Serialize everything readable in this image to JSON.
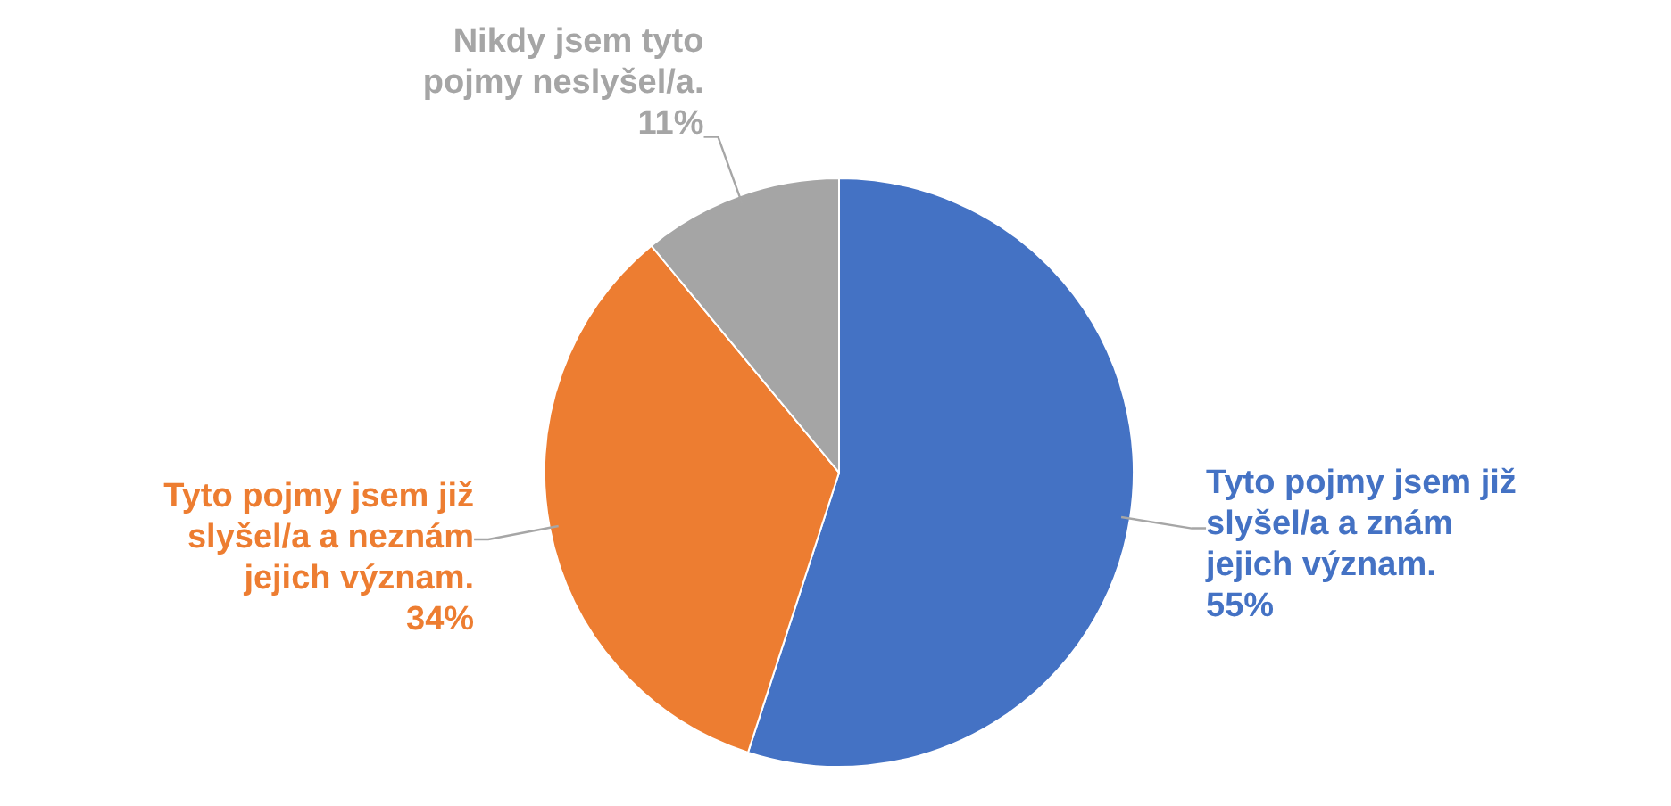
{
  "chart_data": {
    "type": "pie",
    "categories": [
      "Tyto pojmy jsem již slyšel/a a znám jejich význam.",
      "Tyto pojmy jsem již slyšel/a a neznám jejich význam.",
      "Nikdy jsem tyto pojmy neslyšel/a."
    ],
    "values": [
      55,
      34,
      11
    ],
    "colors": [
      "#4472c4",
      "#ed7d31",
      "#a5a5a5"
    ],
    "value_labels": [
      "55%",
      "34%",
      "11%"
    ]
  }
}
